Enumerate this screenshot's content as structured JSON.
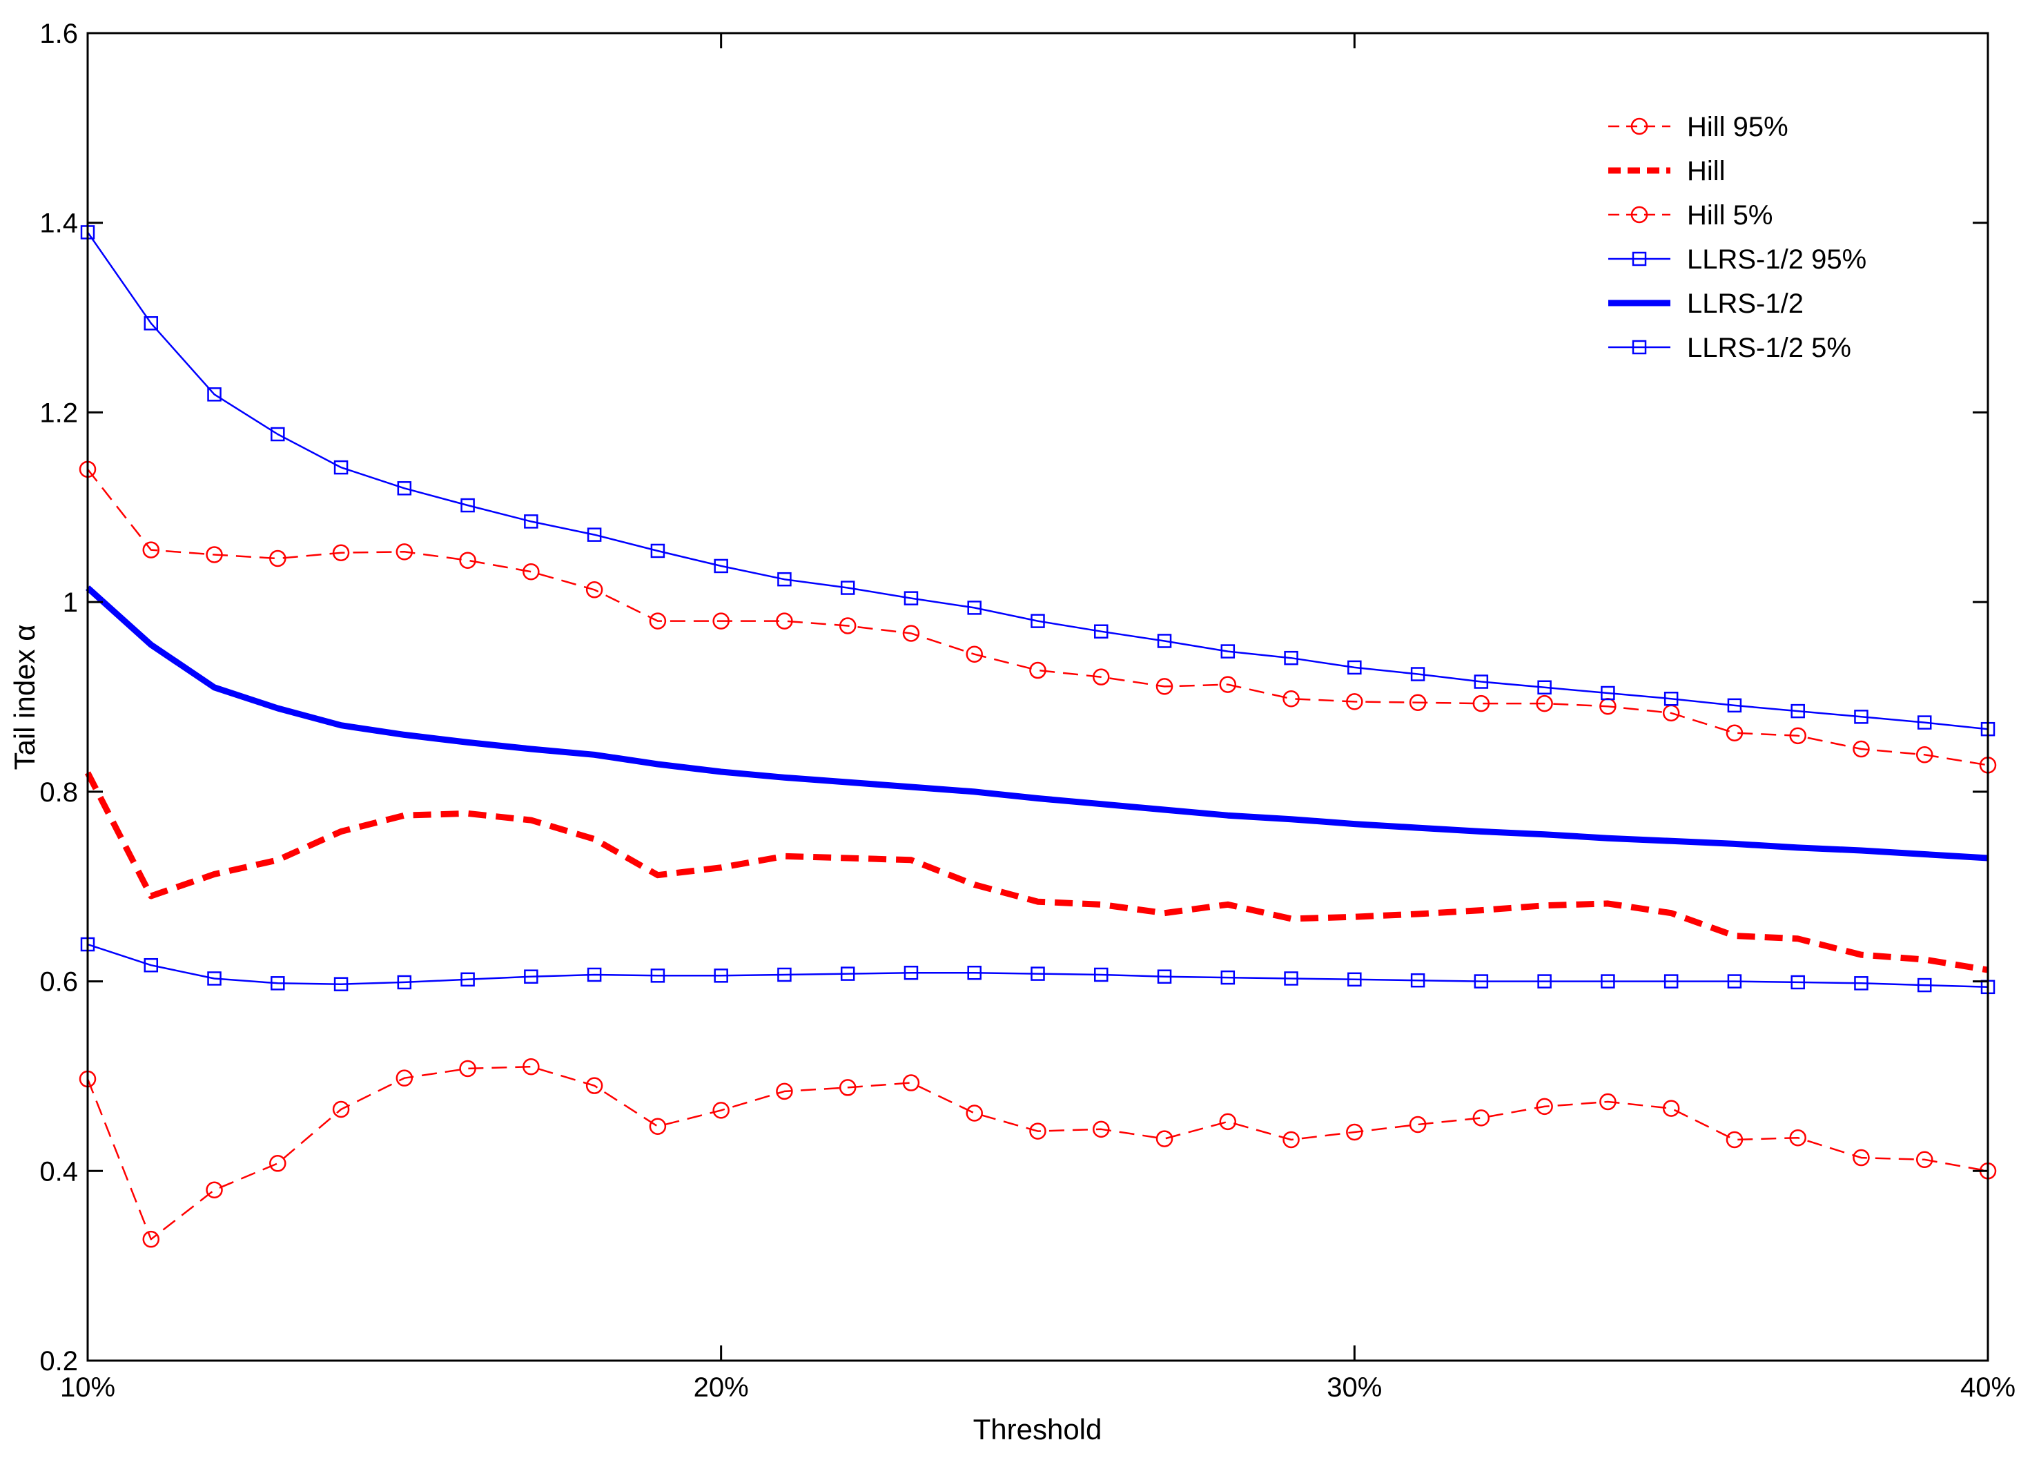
{
  "chart_data": {
    "type": "line",
    "title": "",
    "xlabel": "Threshold",
    "ylabel": "Tail index α",
    "xlim": [
      10,
      40
    ],
    "ylim": [
      0.2,
      1.6
    ],
    "x_ticks": [
      10,
      20,
      30,
      40
    ],
    "x_tick_labels": [
      "10%",
      "20%",
      "30%",
      "40%"
    ],
    "y_ticks": [
      0.2,
      0.4,
      0.6,
      0.8,
      1,
      1.2,
      1.4,
      1.6
    ],
    "y_tick_labels": [
      "0.2",
      "0.4",
      "0.6",
      "0.8",
      "1",
      "1.2",
      "1.4",
      "1.6"
    ],
    "grid": false,
    "legend_position": "top-right",
    "x": [
      10,
      11,
      12,
      13,
      14,
      15,
      16,
      17,
      18,
      19,
      20,
      21,
      22,
      23,
      24,
      25,
      26,
      27,
      28,
      29,
      30,
      31,
      32,
      33,
      34,
      35,
      36,
      37,
      38,
      39,
      40
    ],
    "series": [
      {
        "name": "Hill 95%",
        "color": "#ff0000",
        "line_style": "dashed",
        "marker": "circle",
        "values": [
          1.14,
          1.055,
          1.05,
          1.046,
          1.052,
          1.053,
          1.044,
          1.032,
          1.013,
          0.98,
          0.98,
          0.98,
          0.975,
          0.967,
          0.945,
          0.928,
          0.921,
          0.911,
          0.913,
          0.898,
          0.895,
          0.894,
          0.893,
          0.893,
          0.89,
          0.883,
          0.862,
          0.859,
          0.845,
          0.839,
          0.828
        ]
      },
      {
        "name": "Hill",
        "color": "#ff0000",
        "line_style": "thick-dashed",
        "marker": "none",
        "values": [
          0.82,
          0.69,
          0.713,
          0.728,
          0.758,
          0.775,
          0.777,
          0.77,
          0.75,
          0.712,
          0.72,
          0.732,
          0.73,
          0.728,
          0.702,
          0.684,
          0.681,
          0.672,
          0.681,
          0.666,
          0.668,
          0.671,
          0.675,
          0.68,
          0.682,
          0.672,
          0.648,
          0.645,
          0.628,
          0.623,
          0.612
        ]
      },
      {
        "name": "Hill 5%",
        "color": "#ff0000",
        "line_style": "dashed",
        "marker": "circle",
        "values": [
          0.497,
          0.328,
          0.38,
          0.408,
          0.465,
          0.498,
          0.508,
          0.51,
          0.49,
          0.447,
          0.464,
          0.484,
          0.488,
          0.493,
          0.461,
          0.442,
          0.444,
          0.434,
          0.452,
          0.433,
          0.441,
          0.449,
          0.456,
          0.468,
          0.473,
          0.466,
          0.433,
          0.435,
          0.414,
          0.412,
          0.4
        ]
      },
      {
        "name": "LLRS-1/2 95%",
        "color": "#0000ff",
        "line_style": "solid",
        "marker": "square",
        "values": [
          1.39,
          1.294,
          1.219,
          1.177,
          1.142,
          1.12,
          1.102,
          1.085,
          1.071,
          1.054,
          1.038,
          1.024,
          1.015,
          1.004,
          0.994,
          0.98,
          0.969,
          0.959,
          0.948,
          0.941,
          0.931,
          0.924,
          0.916,
          0.91,
          0.904,
          0.898,
          0.891,
          0.885,
          0.879,
          0.873,
          0.866
        ]
      },
      {
        "name": "LLRS-1/2",
        "color": "#0000ff",
        "line_style": "thick-solid",
        "marker": "none",
        "values": [
          1.015,
          0.955,
          0.91,
          0.888,
          0.87,
          0.86,
          0.852,
          0.845,
          0.839,
          0.829,
          0.821,
          0.815,
          0.81,
          0.805,
          0.8,
          0.793,
          0.787,
          0.781,
          0.775,
          0.771,
          0.766,
          0.762,
          0.758,
          0.755,
          0.751,
          0.748,
          0.745,
          0.741,
          0.738,
          0.734,
          0.73
        ]
      },
      {
        "name": "LLRS-1/2 5%",
        "color": "#0000ff",
        "line_style": "solid",
        "marker": "square",
        "values": [
          0.639,
          0.617,
          0.603,
          0.598,
          0.597,
          0.599,
          0.602,
          0.605,
          0.607,
          0.606,
          0.606,
          0.607,
          0.608,
          0.609,
          0.609,
          0.608,
          0.607,
          0.605,
          0.604,
          0.603,
          0.602,
          0.601,
          0.6,
          0.6,
          0.6,
          0.6,
          0.6,
          0.599,
          0.598,
          0.596,
          0.594
        ]
      }
    ]
  }
}
